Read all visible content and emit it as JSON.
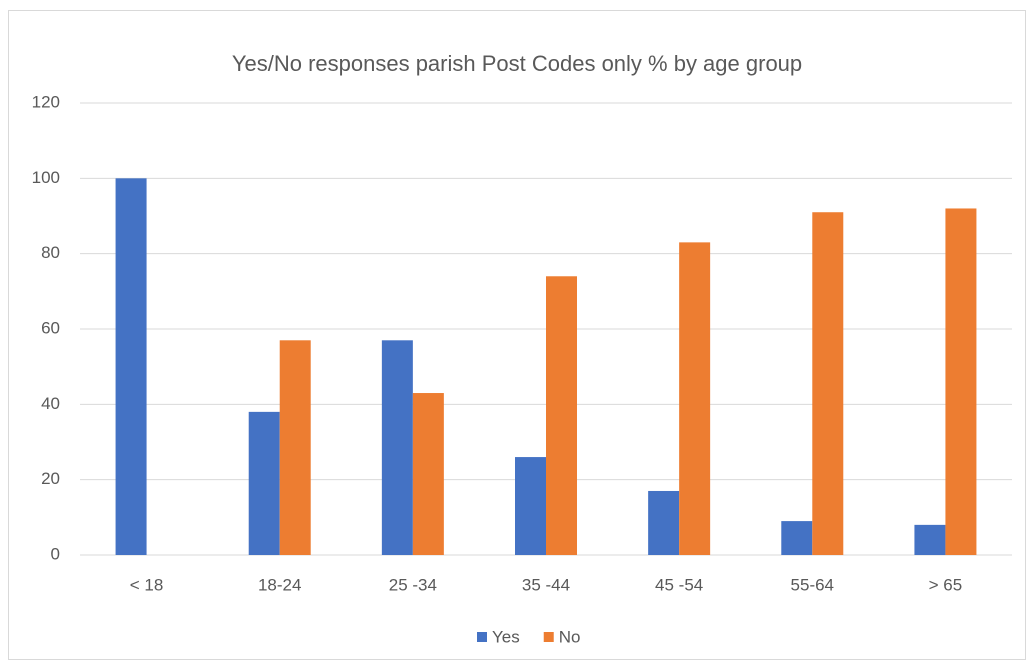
{
  "chart_data": {
    "type": "bar",
    "title": "Yes/No responses parish Post Codes only % by age group",
    "categories": [
      "< 18",
      "18-24",
      "25 -34",
      "35 -44",
      "45 -54",
      "55-64",
      "> 65"
    ],
    "series": [
      {
        "name": "Yes",
        "color": "#4472c4",
        "values": [
          100,
          38,
          57,
          26,
          17,
          9,
          8
        ]
      },
      {
        "name": "No",
        "color": "#ed7d31",
        "values": [
          0,
          57,
          43,
          74,
          83,
          91,
          92
        ]
      }
    ],
    "ylim": [
      0,
      120
    ],
    "yticks": [
      0,
      20,
      40,
      60,
      80,
      100,
      120
    ],
    "grid": true,
    "legend": "bottom"
  }
}
